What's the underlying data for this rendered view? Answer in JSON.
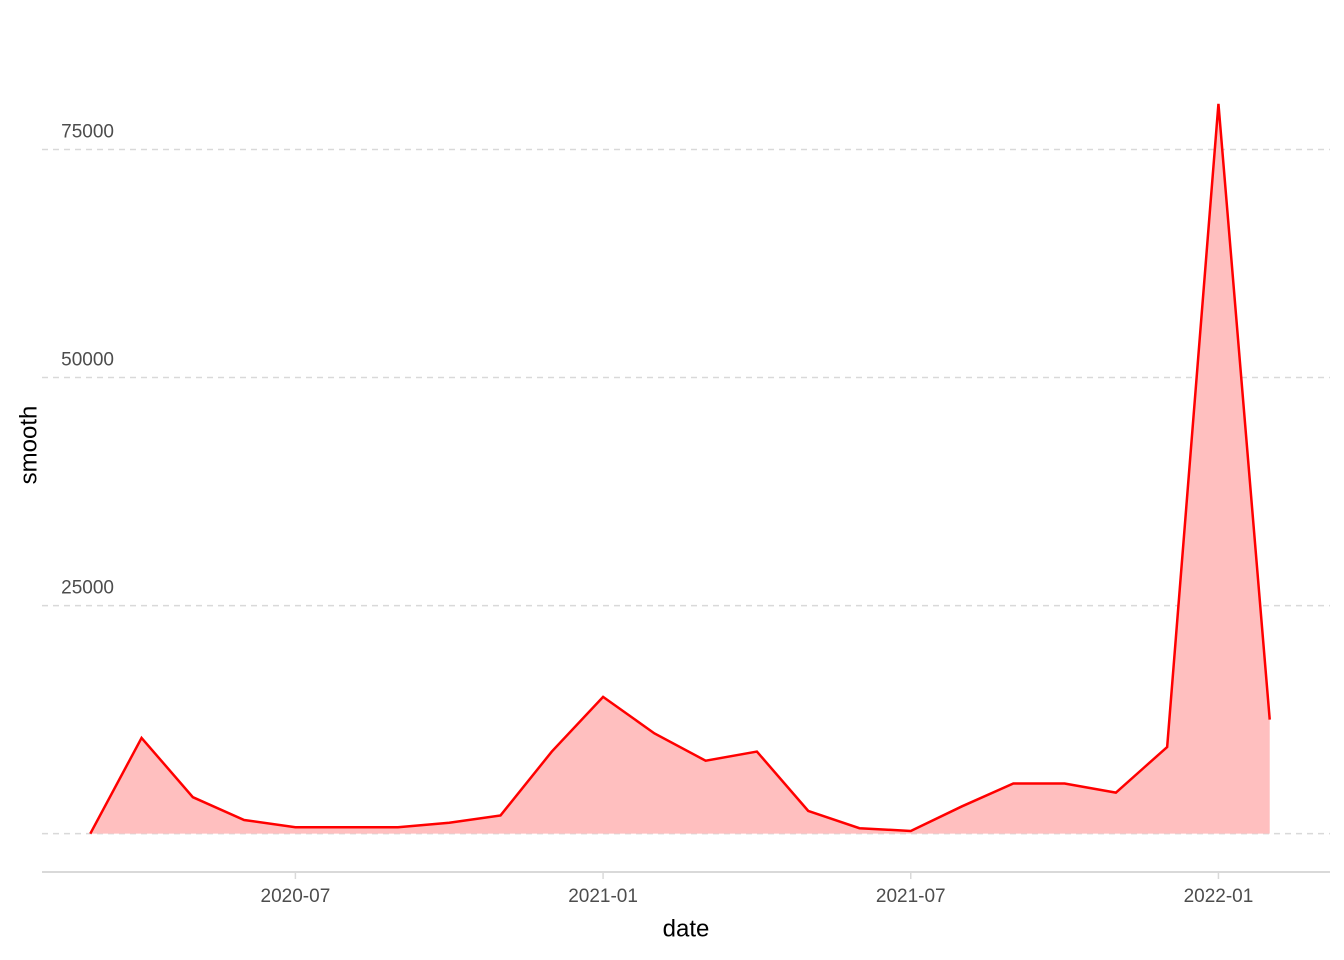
{
  "chart_data": {
    "type": "area",
    "x_label": "date",
    "y_label": "smooth",
    "x": [
      "2020-03",
      "2020-04",
      "2020-05",
      "2020-06",
      "2020-07",
      "2020-08",
      "2020-09",
      "2020-10",
      "2020-11",
      "2020-12",
      "2021-01",
      "2021-02",
      "2021-03",
      "2021-04",
      "2021-05",
      "2021-06",
      "2021-07",
      "2021-08",
      "2021-09",
      "2021-10",
      "2021-11",
      "2021-12",
      "2022-01",
      "2022-02"
    ],
    "series": [
      {
        "name": "smooth",
        "color": "#ff0000",
        "fill": "#ffbfbf",
        "values": [
          0,
          10500,
          4000,
          1500,
          700,
          700,
          700,
          1200,
          2000,
          9000,
          15000,
          11000,
          8000,
          9000,
          2500,
          600,
          300,
          3000,
          5500,
          5500,
          4500,
          9500,
          80000,
          12500
        ]
      }
    ],
    "xlim": [
      "2020-02",
      "2022-03"
    ],
    "xticks": [
      "2020-07",
      "2021-01",
      "2021-07",
      "2022-01"
    ],
    "ylim": [
      -4200,
      87000
    ],
    "yticks": [
      0,
      25000,
      50000,
      75000
    ],
    "grid": true
  }
}
